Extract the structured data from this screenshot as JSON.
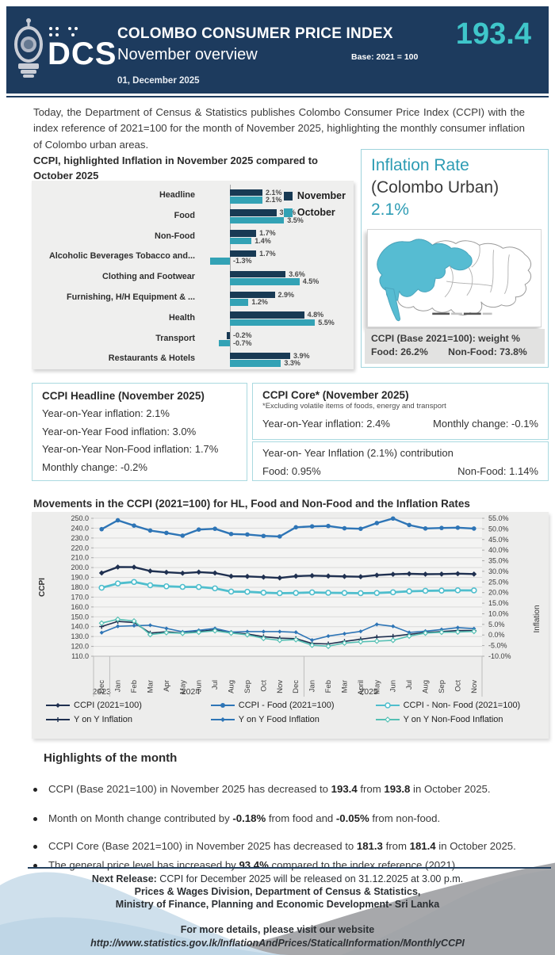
{
  "header": {
    "logo_text": "DCS",
    "title": "COLOMBO CONSUMER PRICE INDEX",
    "subtitle": "November overview",
    "base_label": "Base: 2021 = 100",
    "index_value": "193.4",
    "date": "01, December 2025"
  },
  "intro": "Today, the Department of Census & Statistics publishes Colombo Consumer Price Index (CCPI) with the index reference of 2021=100 for the month of November 2025, highlighting the monthly consumer inflation of Colombo urban areas.",
  "inflation_box": {
    "title_line1": "Inflation Rate",
    "title_line2": "(Colombo Urban)",
    "value": "2.1%",
    "weight_title": "CCPI (Base 2021=100): weight %",
    "weight_food": "Food: 26.2%",
    "weight_nonfood": "Non-Food: 73.8%"
  },
  "headline_box": {
    "title": "CCPI Headline (November 2025)",
    "lines": [
      "Year-on-Year inflation: 2.1%",
      "Year-on-Year Food inflation: 3.0%",
      "Year-on-Year Non-Food inflation: 1.7%",
      "Monthly change:  -0.2%"
    ]
  },
  "core_box": {
    "title": "CCPI Core* (November 2025)",
    "note": "*Excluding volatile items of foods, energy and transport",
    "yoy": "Year-on-Year inflation: 2.4%",
    "monthly": "Monthly change:  -0.1%"
  },
  "contribution_box": {
    "title": "Year-on- Year Inflation (2.1%) contribution",
    "food": "Food: 0.95%",
    "nonfood": "Non-Food: 1.14%"
  },
  "highlights": {
    "title": "Highlights of the month",
    "bullets": [
      [
        {
          "t": "CCPI (Base 2021=100) in November 2025 has decreased to ",
          "b": false
        },
        {
          "t": "193.4",
          "b": true
        },
        {
          "t": " from ",
          "b": false
        },
        {
          "t": "193.8",
          "b": true
        },
        {
          "t": " in October 2025.",
          "b": false
        }
      ],
      [
        {
          "t": "Month on Month change contributed by ",
          "b": false
        },
        {
          "t": "-0.18%",
          "b": true
        },
        {
          "t": " from food and ",
          "b": false
        },
        {
          "t": "-0.05%",
          "b": true
        },
        {
          "t": " from non-food.",
          "b": false
        }
      ],
      [
        {
          "t": "CCPI Core (Base 2021=100) in November 2025 has decreased to ",
          "b": false
        },
        {
          "t": "181.3",
          "b": true
        },
        {
          "t": " from ",
          "b": false
        },
        {
          "t": "181.4",
          "b": true
        },
        {
          "t": " in October 2025.",
          "b": false
        }
      ],
      [
        {
          "t": "The general price level has increased by ",
          "b": false
        },
        {
          "t": "93.4%",
          "b": true
        },
        {
          "t": " compared to the index reference (2021).",
          "b": false
        }
      ]
    ]
  },
  "footer": {
    "next_release_prefix": "Next Release:",
    "next_release_rest": " CCPI for December 2025 will be released on 31.12.2025 at 3.00 p.m.",
    "line2": "Prices & Wages Division, Department of Census & Statistics,",
    "line3": "Ministry of Finance, Planning and Economic Development- Sri Lanka",
    "line4": "For more details, please visit our website",
    "url": "http://www.statistics.gov.lk/InflationAndPrices/StaticalInformation/MonthlyCCPI"
  },
  "colors": {
    "header_navy": "#1d3b5e",
    "teal_accent": "#3fc6ca",
    "november_bar": "#183a54",
    "october_bar": "#33a2b5",
    "box_border": "#aad9e0",
    "map_teal": "#56bcd2"
  },
  "chart_data": [
    {
      "type": "bar",
      "orientation": "horizontal",
      "title": "CCPI, highlighted Inflation in November 2025 compared to October 2025",
      "categories": [
        "Headline",
        "Food",
        "Non-Food",
        "Alcoholic Beverages Tobacco and...",
        "Clothing and Footwear",
        "Furnishing, H/H Equipment & ...",
        "Health",
        "Transport",
        "Restaurants & Hotels"
      ],
      "series": [
        {
          "name": "November",
          "color": "#183a54",
          "values": [
            2.1,
            3.0,
            1.7,
            1.7,
            3.6,
            2.9,
            4.8,
            -0.2,
            3.9
          ]
        },
        {
          "name": "October",
          "color": "#33a2b5",
          "values": [
            2.1,
            3.5,
            1.4,
            -1.3,
            4.5,
            1.2,
            5.5,
            -0.7,
            3.3
          ]
        }
      ],
      "value_suffix": "%",
      "legend_position": "top-right"
    },
    {
      "type": "line",
      "title": "Movements in the CCPI (2021=100) for HL, Food and Non-Food and the Inflation Rates",
      "x": [
        "Dec",
        "Jan",
        "Feb",
        "Mar",
        "Apr",
        "May",
        "Jun",
        "Jul",
        "Aug",
        "Sep",
        "Oct",
        "Nov",
        "Dec",
        "Jan",
        "Feb",
        "Mar",
        "April",
        "May",
        "Jun",
        "Jul",
        "Aug",
        "Sep",
        "Oct",
        "Nov"
      ],
      "year_labels": [
        {
          "label": "2023",
          "index": 0
        },
        {
          "label": "2024",
          "index": 5.5
        },
        {
          "label": "2025",
          "index": 16.5
        }
      ],
      "left_axis": {
        "label": "CCPI",
        "min": 110,
        "max": 250,
        "step": 10
      },
      "right_axis": {
        "label": "Inflation",
        "min": -10,
        "max": 55,
        "step": 5,
        "suffix": "%"
      },
      "grid": true,
      "series": [
        {
          "name": "CCPI (2021=100)",
          "axis": "left",
          "color": "#1f3050",
          "marker": "diamond",
          "width": 2.4,
          "values": [
            194.5,
            200.5,
            200.4,
            196.5,
            195.2,
            194.3,
            195.4,
            194.5,
            191.2,
            191.0,
            190.3,
            189.5,
            191.3,
            191.8,
            191.4,
            191.0,
            190.7,
            192.3,
            193.2,
            193.7,
            193.3,
            193.4,
            193.8,
            193.4
          ]
        },
        {
          "name": "CCPI - Food (2021=100)",
          "axis": "left",
          "color": "#2e75b6",
          "marker": "circle",
          "width": 2.4,
          "values": [
            239.0,
            248.0,
            242.6,
            237.6,
            235.2,
            232.4,
            238.6,
            239.4,
            234.1,
            233.6,
            232.1,
            231.6,
            240.9,
            241.8,
            242.2,
            239.9,
            239.4,
            245.2,
            249.8,
            243.2,
            239.7,
            240.2,
            240.5,
            239.6
          ]
        },
        {
          "name": "CCPI - Non- Food (2021=100)",
          "axis": "left",
          "color": "#4fbecd",
          "marker": "circle-open",
          "width": 2.8,
          "values": [
            179.5,
            183.9,
            185.4,
            182.1,
            181.0,
            180.4,
            180.3,
            178.9,
            175.6,
            175.4,
            174.5,
            174.0,
            174.2,
            174.8,
            174.4,
            174.2,
            174.0,
            174.2,
            174.9,
            175.9,
            176.4,
            176.6,
            176.9,
            176.8
          ]
        },
        {
          "name": "Y on Y  Inflation",
          "axis": "right",
          "color": "#1f3050",
          "marker": "plus",
          "width": 1.6,
          "values": [
            4.0,
            6.4,
            5.9,
            0.9,
            1.5,
            0.9,
            1.7,
            2.4,
            1.1,
            0.5,
            -0.8,
            -1.5,
            -1.7,
            -4.0,
            -4.2,
            -3.0,
            -2.0,
            -1.0,
            -0.6,
            0.3,
            1.2,
            1.6,
            2.1,
            2.1
          ]
        },
        {
          "name": "Y on Y  Food Inflation",
          "axis": "right",
          "color": "#2e75b6",
          "marker": "diamond-small",
          "width": 1.6,
          "values": [
            1.1,
            4.1,
            4.4,
            4.6,
            3.1,
            1.5,
            2.2,
            3.1,
            1.4,
            1.6,
            1.6,
            1.6,
            1.3,
            -2.4,
            -0.5,
            0.6,
            1.7,
            5.0,
            4.1,
            1.2,
            1.8,
            2.6,
            3.5,
            3.0
          ]
        },
        {
          "name": "Y on Y  Non-Food Inflation",
          "axis": "right",
          "color": "#55c0b4",
          "marker": "diamond-open",
          "width": 1.6,
          "values": [
            5.6,
            7.4,
            6.6,
            0.2,
            1.1,
            0.8,
            1.3,
            2.0,
            0.9,
            0.1,
            -1.6,
            -2.5,
            -2.2,
            -4.8,
            -5.3,
            -3.8,
            -3.2,
            -2.9,
            -2.5,
            -0.5,
            0.9,
            1.3,
            1.4,
            1.7
          ]
        }
      ],
      "legend_position": "bottom"
    }
  ]
}
